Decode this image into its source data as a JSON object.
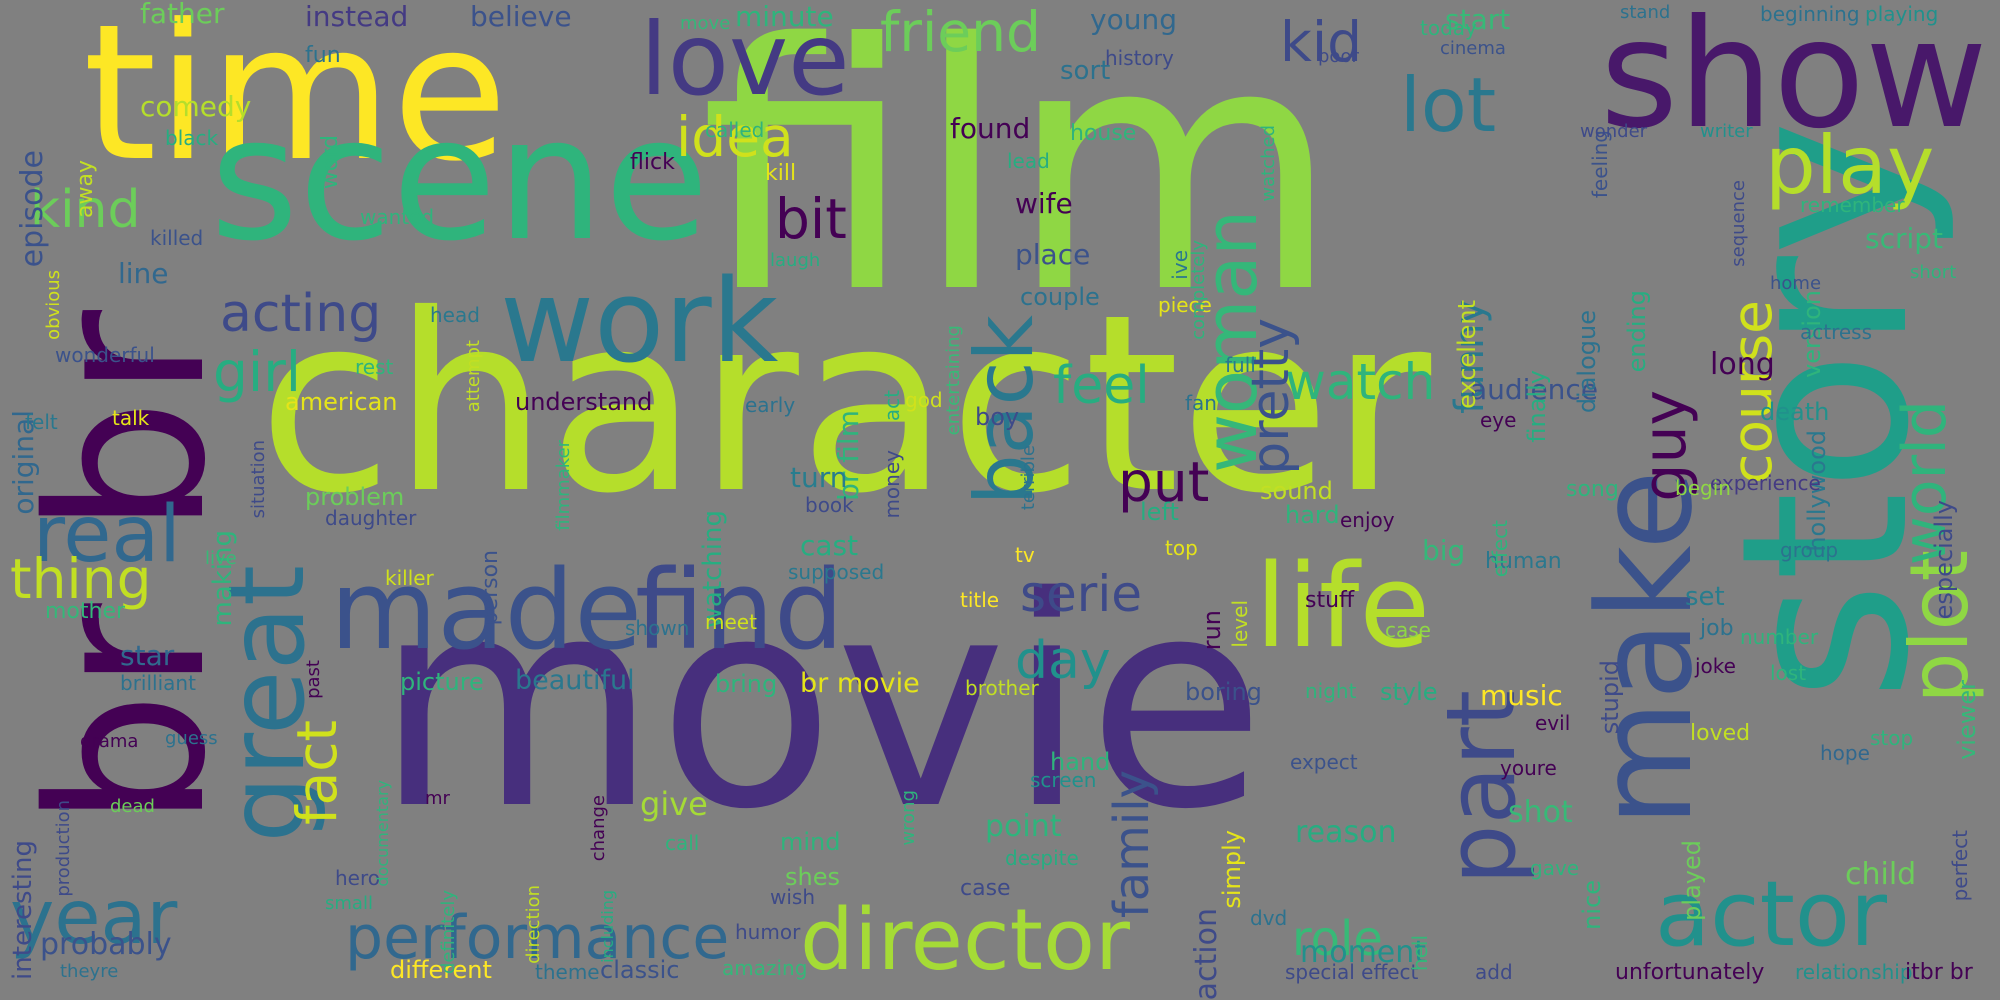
{
  "words": [
    {
      "id": "film",
      "text": "film",
      "color": "#8fd744"
    },
    {
      "id": "character",
      "text": "character",
      "color": "#b5de2b"
    },
    {
      "id": "movie",
      "text": "movie",
      "color": "#472f7d"
    },
    {
      "id": "time",
      "text": "time",
      "color": "#fde725"
    },
    {
      "id": "scene",
      "text": "scene",
      "color": "#2fb47c"
    },
    {
      "id": "show",
      "text": "show",
      "color": "#48186a"
    },
    {
      "id": "story",
      "text": "story",
      "color": "#1f9e89"
    },
    {
      "id": "br-big",
      "text": "br br",
      "color": "#440154"
    },
    {
      "id": "love",
      "text": "love",
      "color": "#443a83"
    },
    {
      "id": "work",
      "text": "work",
      "color": "#2a788e"
    },
    {
      "id": "great",
      "text": "great",
      "color": "#2c728e"
    },
    {
      "id": "made",
      "text": "made",
      "color": "#3b528b"
    },
    {
      "id": "find",
      "text": "find",
      "color": "#3e4a89"
    },
    {
      "id": "life",
      "text": "life",
      "color": "#b5de2b"
    },
    {
      "id": "make",
      "text": "make",
      "color": "#3b528b"
    },
    {
      "id": "director",
      "text": "director",
      "color": "#a5db36"
    },
    {
      "id": "actor",
      "text": "actor",
      "color": "#21918c"
    },
    {
      "id": "year",
      "text": "year",
      "color": "#2c728e"
    },
    {
      "id": "real",
      "text": "real",
      "color": "#31688e"
    },
    {
      "id": "part",
      "text": "part",
      "color": "#3e4a89"
    },
    {
      "id": "back",
      "text": "back",
      "color": "#2a788e"
    },
    {
      "id": "woman",
      "text": "woman",
      "color": "#35b779"
    },
    {
      "id": "plot",
      "text": "plot",
      "color": "#8fd744"
    },
    {
      "id": "world",
      "text": "world",
      "color": "#2fb47c"
    },
    {
      "id": "performance",
      "text": "performance",
      "color": "#31688e"
    },
    {
      "id": "play",
      "text": "play",
      "color": "#b5de2b"
    },
    {
      "id": "lot",
      "text": "lot",
      "color": "#2a788e"
    },
    {
      "id": "kid",
      "text": "kid",
      "color": "#3e4a89"
    },
    {
      "id": "friend",
      "text": "friend",
      "color": "#6ccd5a"
    },
    {
      "id": "idea",
      "text": "idea",
      "color": "#d0e11c"
    },
    {
      "id": "bit",
      "text": "bit",
      "color": "#440154"
    },
    {
      "id": "acting",
      "text": "acting",
      "color": "#3e4a89"
    },
    {
      "id": "kind",
      "text": "kind",
      "color": "#6ccd5a"
    },
    {
      "id": "thing",
      "text": "thing",
      "color": "#c2df23"
    },
    {
      "id": "girl",
      "text": "girl",
      "color": "#27ad81"
    },
    {
      "id": "fact",
      "text": "fact",
      "color": "#d0e11c"
    },
    {
      "id": "feel",
      "text": "feel",
      "color": "#27ad81"
    },
    {
      "id": "watch",
      "text": "watch",
      "color": "#2fb47c"
    },
    {
      "id": "guy",
      "text": "guy",
      "color": "#440154"
    },
    {
      "id": "course",
      "text": "course",
      "color": "#d0e11c"
    },
    {
      "id": "funny",
      "text": "funny",
      "color": "#2a788e"
    },
    {
      "id": "pretty",
      "text": "pretty",
      "color": "#3b528b"
    },
    {
      "id": "put",
      "text": "put",
      "color": "#440154"
    },
    {
      "id": "serie",
      "text": "serie",
      "color": "#3e4a89"
    },
    {
      "id": "day",
      "text": "day",
      "color": "#21918c"
    },
    {
      "id": "family",
      "text": "family",
      "color": "#3b528b"
    },
    {
      "id": "role",
      "text": "role",
      "color": "#38b977"
    },
    {
      "id": "give",
      "text": "give",
      "color": "#a5db36"
    },
    {
      "id": "point",
      "text": "point",
      "color": "#2fb47c"
    },
    {
      "id": "probably",
      "text": "probably",
      "color": "#3b528b"
    },
    {
      "id": "br-film",
      "text": "br film",
      "color": "#2fb47c"
    },
    {
      "id": "br-movie",
      "text": "br movie",
      "color": "#e5e419"
    },
    {
      "id": "reason",
      "text": "reason",
      "color": "#27ad81"
    },
    {
      "id": "moment",
      "text": "moment",
      "color": "#21918c"
    },
    {
      "id": "shot",
      "text": "shot",
      "color": "#38b977"
    },
    {
      "id": "child",
      "text": "child",
      "color": "#6ccd5a"
    },
    {
      "id": "music",
      "text": "music",
      "color": "#fde725"
    },
    {
      "id": "star",
      "text": "star",
      "color": "#31688e"
    },
    {
      "id": "beautiful",
      "text": "beautiful",
      "color": "#2a788e"
    },
    {
      "id": "script",
      "text": "script",
      "color": "#38b977"
    },
    {
      "id": "long",
      "text": "long",
      "color": "#440154"
    },
    {
      "id": "audience",
      "text": "audience",
      "color": "#3b528b"
    },
    {
      "id": "comedy",
      "text": "comedy",
      "color": "#b5de2b"
    },
    {
      "id": "found",
      "text": "found",
      "color": "#440154"
    },
    {
      "id": "place",
      "text": "place",
      "color": "#3b528b"
    },
    {
      "id": "wife",
      "text": "wife",
      "color": "#440154"
    },
    {
      "id": "line",
      "text": "line",
      "color": "#31688e"
    },
    {
      "id": "young",
      "text": "young",
      "color": "#31688e"
    },
    {
      "id": "start",
      "text": "start",
      "color": "#38b977"
    },
    {
      "id": "minute",
      "text": "minute",
      "color": "#2fb47c"
    },
    {
      "id": "father",
      "text": "father",
      "color": "#6ccd5a"
    },
    {
      "id": "instead",
      "text": "instead",
      "color": "#443a83"
    },
    {
      "id": "believe",
      "text": "believe",
      "color": "#3b528b"
    },
    {
      "id": "episode",
      "text": "episode",
      "color": "#3b528b"
    },
    {
      "id": "original",
      "text": "original",
      "color": "#31688e"
    },
    {
      "id": "interesting",
      "text": "interesting",
      "color": "#3e4a89"
    },
    {
      "id": "making",
      "text": "making",
      "color": "#2fb47c"
    },
    {
      "id": "watching",
      "text": "watching",
      "color": "#27ad81"
    },
    {
      "id": "turn",
      "text": "turn",
      "color": "#287d8e"
    },
    {
      "id": "cast",
      "text": "cast",
      "color": "#27ad81"
    },
    {
      "id": "sound",
      "text": "sound",
      "color": "#c2df23"
    },
    {
      "id": "hard",
      "text": "hard",
      "color": "#2fb47c"
    },
    {
      "id": "big",
      "text": "big",
      "color": "#35b779"
    },
    {
      "id": "left",
      "text": "left",
      "color": "#27ad81"
    },
    {
      "id": "especially",
      "text": "especially",
      "color": "#3e4a89"
    },
    {
      "id": "viewer",
      "text": "viewer",
      "color": "#35b779"
    },
    {
      "id": "version",
      "text": "version",
      "color": "#2fb47c"
    },
    {
      "id": "ending",
      "text": "ending",
      "color": "#27ad81"
    },
    {
      "id": "death",
      "text": "death",
      "color": "#21918c"
    },
    {
      "id": "hollywood",
      "text": "hollywood",
      "color": "#2a788e"
    },
    {
      "id": "dialogue",
      "text": "dialogue",
      "color": "#2c728e"
    },
    {
      "id": "finally",
      "text": "finally",
      "color": "#27ad81"
    },
    {
      "id": "excellent",
      "text": "excellent",
      "color": "#c2df23"
    },
    {
      "id": "played",
      "text": "played",
      "color": "#6ccd5a"
    },
    {
      "id": "nice",
      "text": "nice",
      "color": "#2fb47c"
    },
    {
      "id": "stupid",
      "text": "stupid",
      "color": "#3e4a89"
    },
    {
      "id": "song",
      "text": "song",
      "color": "#2fb47c"
    },
    {
      "id": "human",
      "text": "human",
      "color": "#2a788e"
    },
    {
      "id": "set",
      "text": "set",
      "color": "#287d8e"
    },
    {
      "id": "job",
      "text": "job",
      "color": "#2c728e"
    },
    {
      "id": "experience",
      "text": "experience",
      "color": "#443a83"
    },
    {
      "id": "begin",
      "text": "begin",
      "color": "#8fd744"
    },
    {
      "id": "couple",
      "text": "couple",
      "color": "#2c728e"
    },
    {
      "id": "understand",
      "text": "understand",
      "color": "#440154"
    },
    {
      "id": "american",
      "text": "american",
      "color": "#e5e419"
    },
    {
      "id": "problem",
      "text": "problem",
      "color": "#6ccd5a"
    },
    {
      "id": "daughter",
      "text": "daughter",
      "color": "#3e4a89"
    },
    {
      "id": "killer",
      "text": "killer",
      "color": "#d0e11c"
    },
    {
      "id": "person",
      "text": "person",
      "color": "#3b528b"
    },
    {
      "id": "picture",
      "text": "picture",
      "color": "#2fb47c"
    },
    {
      "id": "bring",
      "text": "bring",
      "color": "#2fb47c"
    },
    {
      "id": "boring",
      "text": "boring",
      "color": "#3b528b"
    },
    {
      "id": "style",
      "text": "style",
      "color": "#27ad81"
    },
    {
      "id": "action",
      "text": "action",
      "color": "#3e4a89"
    },
    {
      "id": "simply",
      "text": "simply",
      "color": "#e5e419"
    },
    {
      "id": "hand",
      "text": "hand",
      "color": "#2fb47c"
    },
    {
      "id": "screen",
      "text": "screen",
      "color": "#21918c"
    },
    {
      "id": "mind",
      "text": "mind",
      "color": "#2fb47c"
    },
    {
      "id": "shes",
      "text": "shes",
      "color": "#6ccd5a"
    },
    {
      "id": "case",
      "text": "case",
      "color": "#3e4a89"
    },
    {
      "id": "despite",
      "text": "despite",
      "color": "#27ad81"
    },
    {
      "id": "different",
      "text": "different",
      "color": "#fde725"
    },
    {
      "id": "classic",
      "text": "classic",
      "color": "#3b528b"
    },
    {
      "id": "theme",
      "text": "theme",
      "color": "#2c728e"
    },
    {
      "id": "amazing",
      "text": "amazing",
      "color": "#35b779"
    },
    {
      "id": "special-effect",
      "text": "special effect",
      "color": "#3e4a89"
    },
    {
      "id": "add",
      "text": "add",
      "color": "#3e4a89"
    },
    {
      "id": "unfortunately",
      "text": "unfortunately",
      "color": "#440154"
    },
    {
      "id": "relationship",
      "text": "relationship",
      "color": "#21918c"
    },
    {
      "id": "itbr-br",
      "text": "itbr br",
      "color": "#440154"
    },
    {
      "id": "humor",
      "text": "humor",
      "color": "#3e4a89"
    },
    {
      "id": "wish",
      "text": "wish",
      "color": "#3e4a89"
    },
    {
      "id": "youre",
      "text": "youre",
      "color": "#440154"
    },
    {
      "id": "gave",
      "text": "gave",
      "color": "#2fb47c"
    },
    {
      "id": "dvd",
      "text": "dvd",
      "color": "#2c728e"
    },
    {
      "id": "hell",
      "text": "hell",
      "color": "#35b779"
    },
    {
      "id": "loved",
      "text": "loved",
      "color": "#c2df23"
    },
    {
      "id": "hope",
      "text": "hope",
      "color": "#31688e"
    },
    {
      "id": "perfect",
      "text": "perfect",
      "color": "#3e4a89"
    },
    {
      "id": "joke",
      "text": "joke",
      "color": "#440154"
    },
    {
      "id": "lost",
      "text": "lost",
      "color": "#2fb47c"
    },
    {
      "id": "number",
      "text": "number",
      "color": "#2fb47c"
    },
    {
      "id": "group",
      "text": "group",
      "color": "#2c728e"
    },
    {
      "id": "stop",
      "text": "stop",
      "color": "#2fb47c"
    },
    {
      "id": "expect",
      "text": "expect",
      "color": "#3b528b"
    },
    {
      "id": "evil",
      "text": "evil",
      "color": "#440154"
    },
    {
      "id": "night",
      "text": "night",
      "color": "#2fb47c"
    },
    {
      "id": "stuff",
      "text": "stuff",
      "color": "#440154"
    },
    {
      "id": "case2",
      "text": "case",
      "color": "#8fd744"
    },
    {
      "id": "effect",
      "text": "effect",
      "color": "#2fb47c"
    },
    {
      "id": "enjoy",
      "text": "enjoy",
      "color": "#440154"
    },
    {
      "id": "top",
      "text": "top",
      "color": "#e5e419"
    },
    {
      "id": "tv",
      "text": "tv",
      "color": "#fde725"
    },
    {
      "id": "terrible",
      "text": "terrible",
      "color": "#2c728e"
    },
    {
      "id": "title",
      "text": "title",
      "color": "#fde725"
    },
    {
      "id": "level",
      "text": "level",
      "color": "#c2df23"
    },
    {
      "id": "run",
      "text": "run",
      "color": "#440154"
    },
    {
      "id": "supposed",
      "text": "supposed",
      "color": "#2a788e"
    },
    {
      "id": "book",
      "text": "book",
      "color": "#3e4a89"
    },
    {
      "id": "money",
      "text": "money",
      "color": "#3e4a89"
    },
    {
      "id": "filmmaker",
      "text": "filmmaker",
      "color": "#2fb47c"
    },
    {
      "id": "situation",
      "text": "situation",
      "color": "#3e4a89"
    },
    {
      "id": "live",
      "text": "live",
      "color": "#38b977"
    },
    {
      "id": "early",
      "text": "early",
      "color": "#2c728e"
    },
    {
      "id": "act",
      "text": "act",
      "color": "#27ad81"
    },
    {
      "id": "god",
      "text": "god",
      "color": "#d0e11c"
    },
    {
      "id": "fan",
      "text": "fan",
      "color": "#2c728e"
    },
    {
      "id": "full",
      "text": "full",
      "color": "#2a788e"
    },
    {
      "id": "eye",
      "text": "eye",
      "color": "#440154"
    },
    {
      "id": "boy",
      "text": "boy",
      "color": "#3e4a89"
    },
    {
      "id": "piece",
      "text": "piece",
      "color": "#e5e419"
    },
    {
      "id": "entertaining",
      "text": "entertaining",
      "color": "#38b977"
    },
    {
      "id": "ive",
      "text": "ive",
      "color": "#2a788e"
    },
    {
      "id": "head",
      "text": "head",
      "color": "#2a788e"
    },
    {
      "id": "rest",
      "text": "rest",
      "color": "#2fb47c"
    },
    {
      "id": "attempt",
      "text": "attempt",
      "color": "#c2df23"
    },
    {
      "id": "talk",
      "text": "talk",
      "color": "#e5e419"
    },
    {
      "id": "felt",
      "text": "felt",
      "color": "#2a788e"
    },
    {
      "id": "wonderful",
      "text": "wonderful",
      "color": "#3b528b"
    },
    {
      "id": "obvious",
      "text": "obvious",
      "color": "#d0e11c"
    },
    {
      "id": "killed",
      "text": "killed",
      "color": "#3b528b"
    },
    {
      "id": "wanted",
      "text": "wanted",
      "color": "#2fb47c"
    },
    {
      "id": "flick",
      "text": "flick",
      "color": "#440154"
    },
    {
      "id": "called",
      "text": "called",
      "color": "#2fb47c"
    },
    {
      "id": "kill",
      "text": "kill",
      "color": "#e5e419"
    },
    {
      "id": "laugh",
      "text": "laugh",
      "color": "#27ad81"
    },
    {
      "id": "lead",
      "text": "lead",
      "color": "#27ad81"
    },
    {
      "id": "house",
      "text": "house",
      "color": "#2fb47c"
    },
    {
      "id": "history",
      "text": "history",
      "color": "#3e4a89"
    },
    {
      "id": "sort",
      "text": "sort",
      "color": "#2c728e"
    },
    {
      "id": "fun",
      "text": "fun",
      "color": "#2c728e"
    },
    {
      "id": "word",
      "text": "word",
      "color": "#2fb47c"
    },
    {
      "id": "black",
      "text": "black",
      "color": "#27ad81"
    },
    {
      "id": "away",
      "text": "away",
      "color": "#c2df23"
    },
    {
      "id": "move",
      "text": "move",
      "color": "#35b779"
    },
    {
      "id": "today",
      "text": "today",
      "color": "#2fb47c"
    },
    {
      "id": "poor",
      "text": "poor",
      "color": "#3e4a89"
    },
    {
      "id": "cinema",
      "text": "cinema",
      "color": "#3b528b"
    },
    {
      "id": "watched",
      "text": "watched",
      "color": "#2fb47c"
    },
    {
      "id": "completely",
      "text": "completely",
      "color": "#2fb47c"
    },
    {
      "id": "feeling",
      "text": "feeling",
      "color": "#3b528b"
    },
    {
      "id": "stand",
      "text": "stand",
      "color": "#2c728e"
    },
    {
      "id": "beginning",
      "text": "beginning",
      "color": "#2c728e"
    },
    {
      "id": "playing",
      "text": "playing",
      "color": "#21918c"
    },
    {
      "id": "wonder",
      "text": "wonder",
      "color": "#3e4a89"
    },
    {
      "id": "writer",
      "text": "writer",
      "color": "#21918c"
    },
    {
      "id": "sequence",
      "text": "sequence",
      "color": "#3e4a89"
    },
    {
      "id": "remember",
      "text": "remember",
      "color": "#2fb47c"
    },
    {
      "id": "short",
      "text": "short",
      "color": "#2fb47c"
    },
    {
      "id": "home",
      "text": "home",
      "color": "#3b528b"
    },
    {
      "id": "actress",
      "text": "actress",
      "color": "#2c728e"
    },
    {
      "id": "mother",
      "text": "mother",
      "color": "#35b779"
    },
    {
      "id": "brilliant",
      "text": "brilliant",
      "color": "#2c728e"
    },
    {
      "id": "guess",
      "text": "guess",
      "color": "#2c728e"
    },
    {
      "id": "drama",
      "text": "drama",
      "color": "#440154"
    },
    {
      "id": "production",
      "text": "production",
      "color": "#3e4a89"
    },
    {
      "id": "dead",
      "text": "dead",
      "color": "#6ccd5a"
    },
    {
      "id": "hero",
      "text": "hero",
      "color": "#3e4a89"
    },
    {
      "id": "small",
      "text": "small",
      "color": "#27ad81"
    },
    {
      "id": "theyre",
      "text": "theyre",
      "color": "#2c728e"
    },
    {
      "id": "past",
      "text": "past",
      "color": "#440154"
    },
    {
      "id": "documentary",
      "text": "documentary",
      "color": "#2fb47c"
    },
    {
      "id": "mr",
      "text": "mr",
      "color": "#440154"
    },
    {
      "id": "definitely",
      "text": "definitely",
      "color": "#2fb47c"
    },
    {
      "id": "direction",
      "text": "direction",
      "color": "#c2df23"
    },
    {
      "id": "including",
      "text": "including",
      "color": "#27ad81"
    },
    {
      "id": "change",
      "text": "change",
      "color": "#440154"
    },
    {
      "id": "call",
      "text": "call",
      "color": "#2fb47c"
    },
    {
      "id": "shown",
      "text": "shown",
      "color": "#2c728e"
    },
    {
      "id": "meet",
      "text": "meet",
      "color": "#d0e11c"
    },
    {
      "id": "wrong",
      "text": "wrong",
      "color": "#2fb47c"
    },
    {
      "id": "brother",
      "text": "brother",
      "color": "#c2df23"
    }
  ]
}
